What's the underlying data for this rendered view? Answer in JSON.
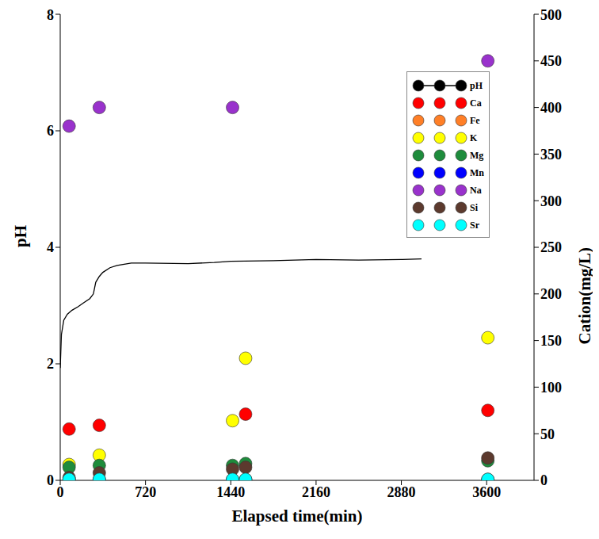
{
  "chart_data": {
    "type": "line",
    "xlabel": "Elapsed time(min)",
    "ylabel": "pH",
    "y2label": "Cation(mg/L)",
    "xlim": [
      0,
      4000
    ],
    "xticks": [
      0,
      720,
      1440,
      2160,
      2880,
      3600
    ],
    "ylim": [
      0,
      8
    ],
    "yticks": [
      0,
      2,
      4,
      6,
      8
    ],
    "y2lim": [
      0,
      500
    ],
    "y2ticks": [
      0,
      50,
      100,
      150,
      200,
      250,
      300,
      350,
      400,
      450,
      500
    ],
    "grid": false,
    "legend": "upper right",
    "series": [
      {
        "name": "pH",
        "type": "line",
        "color": "#000000",
        "line_style": "solid",
        "x": [
          0,
          10,
          30,
          60,
          100,
          150,
          200,
          250,
          280,
          300,
          330,
          360,
          420,
          480,
          600,
          720,
          1080,
          1300,
          1440,
          1800,
          2160,
          2520,
          2880,
          3050
        ],
        "values": [
          1.93,
          2.5,
          2.75,
          2.85,
          2.92,
          2.98,
          3.05,
          3.12,
          3.2,
          3.4,
          3.5,
          3.57,
          3.65,
          3.69,
          3.73,
          3.73,
          3.72,
          3.74,
          3.76,
          3.77,
          3.79,
          3.78,
          3.79,
          3.8
        ]
      },
      {
        "name": "Ca",
        "type": "scatter",
        "axis": "y2",
        "marker": "circle",
        "color": "#ff0000",
        "x": [
          75,
          330,
          1455,
          1565,
          3610
        ],
        "values": [
          55,
          59,
          null,
          71,
          75
        ]
      },
      {
        "name": "Fe",
        "type": "scatter",
        "axis": "y2",
        "marker": "circle",
        "color": "#ff7f27",
        "x": [
          75,
          330,
          1455,
          1565,
          3610
        ],
        "values": [
          1,
          1,
          1,
          1,
          1
        ]
      },
      {
        "name": "K",
        "type": "scatter",
        "axis": "y2",
        "marker": "circle",
        "color": "#ffff00",
        "x": [
          75,
          330,
          1455,
          1565,
          3610
        ],
        "values": [
          17,
          27,
          64,
          131,
          153
        ]
      },
      {
        "name": "Mg",
        "type": "scatter",
        "axis": "y2",
        "marker": "circle",
        "color": "#1e8c3c",
        "x": [
          75,
          330,
          1455,
          1565,
          3610
        ],
        "values": [
          14,
          16,
          16,
          18,
          21
        ]
      },
      {
        "name": "Mn",
        "type": "scatter",
        "axis": "y2",
        "marker": "circle",
        "color": "#0000ff",
        "x": [
          75,
          330,
          1455,
          1565,
          3610
        ],
        "values": [
          0,
          0,
          0,
          0,
          0
        ]
      },
      {
        "name": "Na",
        "type": "scatter",
        "axis": "y2",
        "marker": "circle",
        "color": "#9932cc",
        "x": [
          75,
          330,
          1455,
          1565,
          3610
        ],
        "values": [
          380,
          400,
          400,
          null,
          450
        ]
      },
      {
        "name": "Si",
        "type": "scatter",
        "axis": "y2",
        "marker": "circle",
        "color": "#5c3a2e",
        "x": [
          75,
          330,
          1455,
          1565,
          3610
        ],
        "values": [
          3,
          8,
          12,
          14,
          24
        ]
      },
      {
        "name": "Sr",
        "type": "scatter",
        "axis": "y2",
        "marker": "circle",
        "color": "#00ffff",
        "x": [
          75,
          330,
          1455,
          1565,
          3610
        ],
        "values": [
          1,
          1,
          1,
          1,
          1
        ]
      }
    ]
  }
}
